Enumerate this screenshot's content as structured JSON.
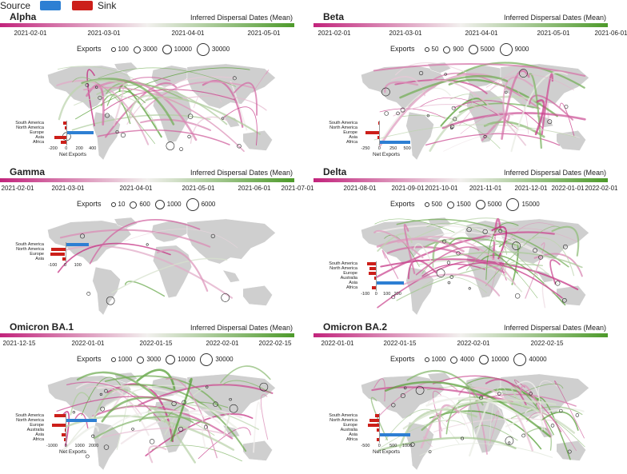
{
  "legend": {
    "source_label": "Source",
    "sink_label": "Sink",
    "source_color": "#2d7fd3",
    "sink_color": "#cc1f1a"
  },
  "colors": {
    "gradient_start": "#c2247c",
    "gradient_mid": "#f2f0ee",
    "gradient_end": "#4d9a2a"
  },
  "panels": [
    {
      "title": "Alpha",
      "gradient_label": "Inferred Dispersal Dates (Mean)",
      "date_ticks": [
        "2021-02-01",
        "2021-03-01",
        "2021-04-01",
        "2021-05-01"
      ],
      "exports_label": "Exports",
      "exports_sizes": [
        "100",
        "3000",
        "10000",
        "30000"
      ],
      "chart_data": {
        "type": "bar",
        "xlabel": "Net Exports",
        "categories": [
          "South America",
          "North America",
          "Europe",
          "Asia",
          "Africa"
        ],
        "values": [
          -40,
          -20,
          420,
          -180,
          -80
        ],
        "xlim": [
          -300,
          500
        ],
        "tick_labels": [
          "-200",
          "0",
          "200",
          "400"
        ]
      }
    },
    {
      "title": "Beta",
      "gradient_label": "Inferred Dispersal Dates (Mean)",
      "date_ticks": [
        "2021-02-01",
        "2021-03-01",
        "2021-04-01",
        "2021-05-01",
        "2021-06-01"
      ],
      "exports_label": "Exports",
      "exports_sizes": [
        "50",
        "900",
        "5000",
        "9000"
      ],
      "chart_data": {
        "type": "bar",
        "xlabel": "Net Exports",
        "categories": [
          "South America",
          "North America",
          "Europe",
          "Asia",
          "Africa"
        ],
        "values": [
          -20,
          -10,
          -250,
          -30,
          560
        ],
        "xlim": [
          -350,
          600
        ],
        "tick_labels": [
          "-250",
          "0",
          "250",
          "500"
        ]
      }
    },
    {
      "title": "Gamma",
      "gradient_label": "Inferred Dispersal Dates (Mean)",
      "date_ticks": [
        "2021-02-01",
        "2021-03-01",
        "2021-04-01",
        "2021-05-01",
        "2021-06-01",
        "2021-07-01"
      ],
      "exports_label": "Exports",
      "exports_sizes": [
        "10",
        "600",
        "1000",
        "6000"
      ],
      "chart_data": {
        "type": "bar",
        "xlabel": "",
        "categories": [
          "South America",
          "North America",
          "Europe",
          "Asia"
        ],
        "values": [
          190,
          -110,
          -120,
          -20
        ],
        "xlim": [
          -150,
          220
        ],
        "tick_labels": [
          "-100",
          "0",
          "100"
        ]
      }
    },
    {
      "title": "Delta",
      "gradient_label": "Inferred Dispersal Dates (Mean)",
      "date_ticks": [
        "2021-08-01",
        "2021-09-01",
        "2021-10-01",
        "2021-11-01",
        "2021-12-01",
        "2022-01-01",
        "2022-02-01"
      ],
      "exports_label": "Exports",
      "exports_sizes": [
        "500",
        "1500",
        "5000",
        "15000"
      ],
      "chart_data": {
        "type": "bar",
        "xlabel": "",
        "categories": [
          "South America",
          "North America",
          "Europe",
          "Australia",
          "Asia",
          "Africa"
        ],
        "values": [
          -80,
          -60,
          -70,
          -20,
          260,
          -40
        ],
        "xlim": [
          -150,
          280
        ],
        "tick_labels": [
          "-100",
          "0",
          "100",
          "200"
        ]
      }
    },
    {
      "title": "Omicron BA.1",
      "gradient_label": "Inferred Dispersal Dates (Mean)",
      "date_ticks": [
        "2021-12-15",
        "2022-01-01",
        "2022-01-15",
        "2022-02-01",
        "2022-02-15"
      ],
      "exports_label": "Exports",
      "exports_sizes": [
        "1000",
        "3000",
        "10000",
        "30000"
      ],
      "chart_data": {
        "type": "bar",
        "xlabel": "Net Exports",
        "categories": [
          "South America",
          "North America",
          "Europe",
          "Australia",
          "Asia",
          "Africa"
        ],
        "values": [
          -800,
          2200,
          -1000,
          -100,
          -300,
          -150
        ],
        "xlim": [
          -1400,
          2400
        ],
        "tick_labels": [
          "-1000",
          "0",
          "1000",
          "2000"
        ]
      }
    },
    {
      "title": "Omicron BA.2",
      "gradient_label": "Inferred Dispersal Dates (Mean)",
      "date_ticks": [
        "2022-01-01",
        "2022-01-15",
        "2022-02-01",
        "2022-02-15"
      ],
      "exports_label": "Exports",
      "exports_sizes": [
        "1000",
        "4000",
        "10000",
        "40000"
      ],
      "chart_data": {
        "type": "bar",
        "xlabel": "Net Exports",
        "categories": [
          "South America",
          "North America",
          "Europe",
          "Australia",
          "Asia",
          "Africa"
        ],
        "values": [
          -150,
          -350,
          -400,
          -100,
          1100,
          -100
        ],
        "xlim": [
          -700,
          1200
        ],
        "tick_labels": [
          "-500",
          "0",
          "500",
          "1000"
        ]
      }
    }
  ]
}
